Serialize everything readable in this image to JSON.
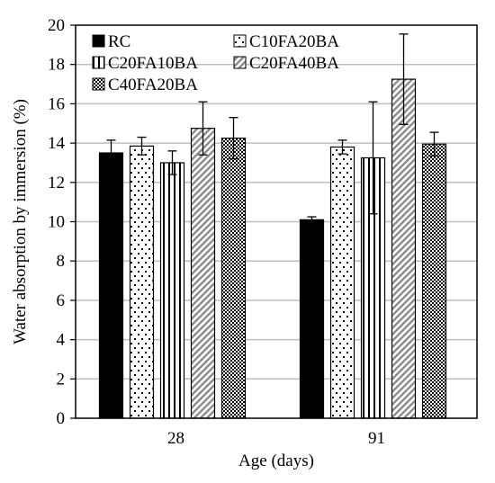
{
  "chart_data": {
    "type": "bar",
    "title": "",
    "xlabel": "Age (days)",
    "ylabel": "Water absorption by immersion  (%)",
    "ylim": [
      0,
      20
    ],
    "yticks": [
      0,
      2,
      4,
      6,
      8,
      10,
      12,
      14,
      16,
      18,
      20
    ],
    "grid": true,
    "legend_position": "top-left",
    "categories": [
      "28",
      "91"
    ],
    "series": [
      {
        "name": "RC",
        "values": [
          13.5,
          10.1
        ],
        "errors": [
          0.65,
          0.15
        ],
        "pattern": "solid"
      },
      {
        "name": "C10FA20BA",
        "values": [
          13.85,
          13.8
        ],
        "errors": [
          0.45,
          0.35
        ],
        "pattern": "dots"
      },
      {
        "name": "C20FA10BA",
        "values": [
          13.0,
          13.25
        ],
        "errors": [
          0.6,
          2.85
        ],
        "pattern": "vlines"
      },
      {
        "name": "C20FA40BA",
        "values": [
          14.75,
          17.25
        ],
        "errors": [
          1.35,
          2.3
        ],
        "pattern": "diagonal"
      },
      {
        "name": "C40FA20BA",
        "values": [
          14.25,
          13.95
        ],
        "errors": [
          1.05,
          0.6
        ],
        "pattern": "checker"
      }
    ]
  }
}
